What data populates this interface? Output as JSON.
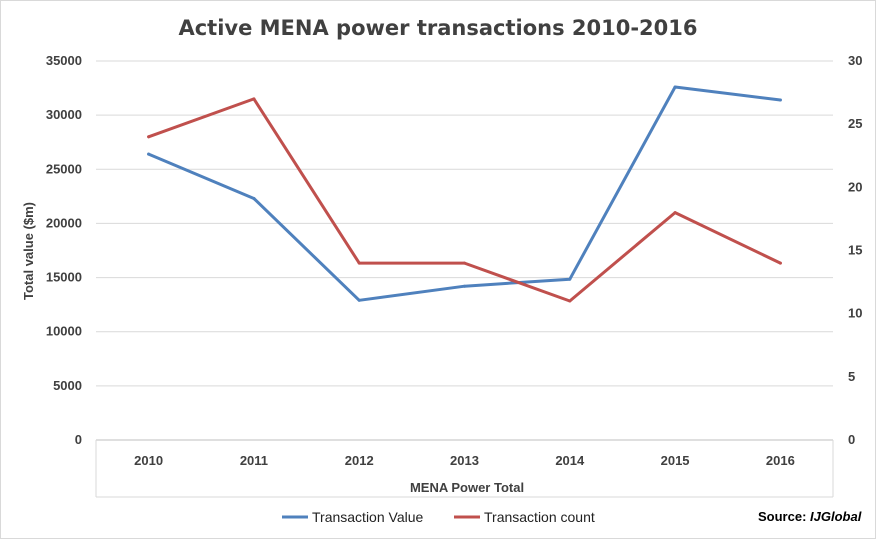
{
  "chart_data": {
    "type": "line",
    "title": "Active MENA power transactions 2010-2016",
    "xlabel": "MENA Power Total",
    "ylabel": "Total value ($m)",
    "y2label": "",
    "categories": [
      "2010",
      "2011",
      "2012",
      "2013",
      "2014",
      "2015",
      "2016"
    ],
    "ylim": [
      0,
      35000
    ],
    "yticks": [
      0,
      5000,
      10000,
      15000,
      20000,
      25000,
      30000,
      35000
    ],
    "y2lim": [
      0,
      30
    ],
    "y2ticks": [
      0,
      5,
      10,
      15,
      20,
      25,
      30
    ],
    "grid": true,
    "legend_position": "bottom",
    "series": [
      {
        "name": "Transaction Value",
        "axis": "left",
        "color": "#4F81BD",
        "values": [
          26400,
          22300,
          12900,
          14200,
          14850,
          32600,
          31400
        ]
      },
      {
        "name": "Transaction count",
        "axis": "right",
        "color": "#C0504D",
        "values": [
          24,
          27,
          14,
          14,
          11,
          18,
          14
        ]
      }
    ]
  },
  "source": {
    "label": "Source:",
    "name": "IJGlobal"
  }
}
